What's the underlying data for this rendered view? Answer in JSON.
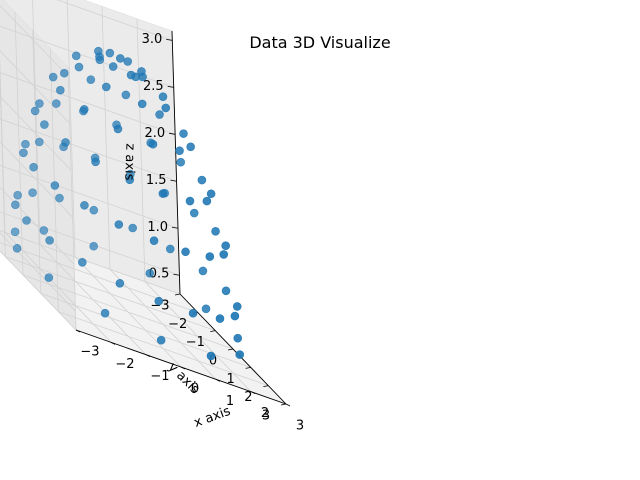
{
  "chart_data": {
    "type": "scatter",
    "title": "Data 3D Visualize",
    "xlabel": "x axis",
    "ylabel": "y axis",
    "zlabel": "z axis",
    "xlim": [
      -3,
      3
    ],
    "ylim": [
      -3,
      3
    ],
    "zlim": [
      0.3,
      3.1
    ],
    "xticks": [
      "3",
      "2",
      "1",
      "0",
      "−1",
      "−2",
      "−3"
    ],
    "yticks": [
      "−3",
      "−2",
      "−1",
      "0",
      "1",
      "2",
      "3"
    ],
    "zticks": [
      "0.5",
      "1.0",
      "1.5",
      "2.0",
      "2.5",
      "3.0"
    ],
    "grid": true,
    "marker_color": "#1f77b4",
    "points": [
      {
        "x": 0.0,
        "y": 0.0,
        "z": 3.0
      },
      {
        "x": 0.6,
        "y": 0.0,
        "z": 2.94
      },
      {
        "x": -0.6,
        "y": 0.0,
        "z": 2.94
      },
      {
        "x": 0.0,
        "y": 0.6,
        "z": 2.94
      },
      {
        "x": 0.0,
        "y": -0.6,
        "z": 2.94
      },
      {
        "x": 0.42,
        "y": 0.42,
        "z": 2.94
      },
      {
        "x": -0.42,
        "y": 0.42,
        "z": 2.94
      },
      {
        "x": 0.42,
        "y": -0.42,
        "z": 2.94
      },
      {
        "x": -0.42,
        "y": -0.42,
        "z": 2.94
      },
      {
        "x": 1.2,
        "y": 0.0,
        "z": 2.75
      },
      {
        "x": 0.85,
        "y": 0.85,
        "z": 2.75
      },
      {
        "x": 0.0,
        "y": 1.2,
        "z": 2.75
      },
      {
        "x": -0.85,
        "y": 0.85,
        "z": 2.75
      },
      {
        "x": -1.2,
        "y": 0.0,
        "z": 2.75
      },
      {
        "x": -0.85,
        "y": -0.85,
        "z": 2.75
      },
      {
        "x": 0.0,
        "y": -1.2,
        "z": 2.75
      },
      {
        "x": 0.85,
        "y": -0.85,
        "z": 2.75
      },
      {
        "x": 1.76,
        "y": 0.0,
        "z": 2.43
      },
      {
        "x": 1.52,
        "y": 0.88,
        "z": 2.43
      },
      {
        "x": 0.88,
        "y": 1.52,
        "z": 2.43
      },
      {
        "x": 0.0,
        "y": 1.76,
        "z": 2.43
      },
      {
        "x": -0.88,
        "y": 1.52,
        "z": 2.43
      },
      {
        "x": -1.52,
        "y": 0.88,
        "z": 2.43
      },
      {
        "x": -1.76,
        "y": 0.0,
        "z": 2.43
      },
      {
        "x": -1.52,
        "y": -0.88,
        "z": 2.43
      },
      {
        "x": -0.88,
        "y": -1.52,
        "z": 2.43
      },
      {
        "x": 0.0,
        "y": -1.76,
        "z": 2.43
      },
      {
        "x": 0.88,
        "y": -1.52,
        "z": 2.43
      },
      {
        "x": 1.52,
        "y": -0.88,
        "z": 2.43
      },
      {
        "x": 2.25,
        "y": 0.0,
        "z": 2.0
      },
      {
        "x": 2.08,
        "y": 0.86,
        "z": 2.0
      },
      {
        "x": 1.59,
        "y": 1.59,
        "z": 2.0
      },
      {
        "x": 0.86,
        "y": 2.08,
        "z": 2.0
      },
      {
        "x": 0.0,
        "y": 2.25,
        "z": 2.0
      },
      {
        "x": -0.86,
        "y": 2.08,
        "z": 2.0
      },
      {
        "x": -1.59,
        "y": 1.59,
        "z": 2.0
      },
      {
        "x": -2.08,
        "y": 0.86,
        "z": 2.0
      },
      {
        "x": -2.25,
        "y": 0.0,
        "z": 2.0
      },
      {
        "x": -2.08,
        "y": -0.86,
        "z": 2.0
      },
      {
        "x": -1.59,
        "y": -1.59,
        "z": 2.0
      },
      {
        "x": -0.86,
        "y": -2.08,
        "z": 2.0
      },
      {
        "x": 0.0,
        "y": -2.25,
        "z": 2.0
      },
      {
        "x": 0.86,
        "y": -2.08,
        "z": 2.0
      },
      {
        "x": 1.59,
        "y": -1.59,
        "z": 2.0
      },
      {
        "x": 2.08,
        "y": -0.86,
        "z": 2.0
      },
      {
        "x": 2.6,
        "y": 0.0,
        "z": 1.5
      },
      {
        "x": 2.44,
        "y": 0.89,
        "z": 1.5
      },
      {
        "x": 1.99,
        "y": 1.67,
        "z": 1.5
      },
      {
        "x": 1.3,
        "y": 2.25,
        "z": 1.5
      },
      {
        "x": 0.45,
        "y": 2.56,
        "z": 1.5
      },
      {
        "x": -0.45,
        "y": 2.56,
        "z": 1.5
      },
      {
        "x": -1.3,
        "y": 2.25,
        "z": 1.5
      },
      {
        "x": -1.99,
        "y": 1.67,
        "z": 1.5
      },
      {
        "x": -2.44,
        "y": 0.89,
        "z": 1.5
      },
      {
        "x": -2.6,
        "y": 0.0,
        "z": 1.5
      },
      {
        "x": -2.44,
        "y": -0.89,
        "z": 1.5
      },
      {
        "x": -1.99,
        "y": -1.67,
        "z": 1.5
      },
      {
        "x": -1.3,
        "y": -2.25,
        "z": 1.5
      },
      {
        "x": -0.45,
        "y": -2.56,
        "z": 1.5
      },
      {
        "x": 0.45,
        "y": -2.56,
        "z": 1.5
      },
      {
        "x": 1.3,
        "y": -2.25,
        "z": 1.5
      },
      {
        "x": 1.99,
        "y": -1.67,
        "z": 1.5
      },
      {
        "x": 2.44,
        "y": -0.89,
        "z": 1.5
      },
      {
        "x": 2.85,
        "y": 0.0,
        "z": 0.9
      },
      {
        "x": 2.68,
        "y": 0.97,
        "z": 0.9
      },
      {
        "x": 2.18,
        "y": 1.83,
        "z": 0.9
      },
      {
        "x": 1.43,
        "y": 2.47,
        "z": 0.9
      },
      {
        "x": 0.49,
        "y": 2.81,
        "z": 0.9
      },
      {
        "x": -0.49,
        "y": 2.81,
        "z": 0.9
      },
      {
        "x": -1.43,
        "y": 2.47,
        "z": 0.9
      },
      {
        "x": -2.18,
        "y": 1.83,
        "z": 0.9
      },
      {
        "x": -2.68,
        "y": 0.97,
        "z": 0.9
      },
      {
        "x": -2.85,
        "y": 0.0,
        "z": 0.9
      },
      {
        "x": -2.68,
        "y": -0.97,
        "z": 0.9
      },
      {
        "x": -2.18,
        "y": -1.83,
        "z": 0.9
      },
      {
        "x": -1.43,
        "y": -2.47,
        "z": 0.9
      },
      {
        "x": -0.49,
        "y": -2.81,
        "z": 0.9
      },
      {
        "x": 0.49,
        "y": -2.81,
        "z": 0.9
      },
      {
        "x": 1.43,
        "y": -2.47,
        "z": 0.9
      },
      {
        "x": 2.18,
        "y": -1.83,
        "z": 0.9
      },
      {
        "x": 2.68,
        "y": -0.97,
        "z": 0.9
      },
      {
        "x": 2.9,
        "y": 0.5,
        "z": 0.5
      },
      {
        "x": 2.3,
        "y": 1.8,
        "z": 0.5
      },
      {
        "x": 1.0,
        "y": 2.75,
        "z": 0.5
      },
      {
        "x": -0.5,
        "y": 2.9,
        "z": 0.5
      },
      {
        "x": -1.8,
        "y": 2.3,
        "z": 0.5
      },
      {
        "x": -2.75,
        "y": 1.0,
        "z": 0.5
      },
      {
        "x": -2.9,
        "y": -0.5,
        "z": 0.5
      },
      {
        "x": -2.3,
        "y": -1.8,
        "z": 0.5
      },
      {
        "x": -1.0,
        "y": -2.75,
        "z": 0.5
      },
      {
        "x": 0.5,
        "y": -2.9,
        "z": 0.5
      },
      {
        "x": 1.8,
        "y": -2.3,
        "z": 0.5
      },
      {
        "x": 2.75,
        "y": -1.0,
        "z": 0.5
      }
    ]
  }
}
